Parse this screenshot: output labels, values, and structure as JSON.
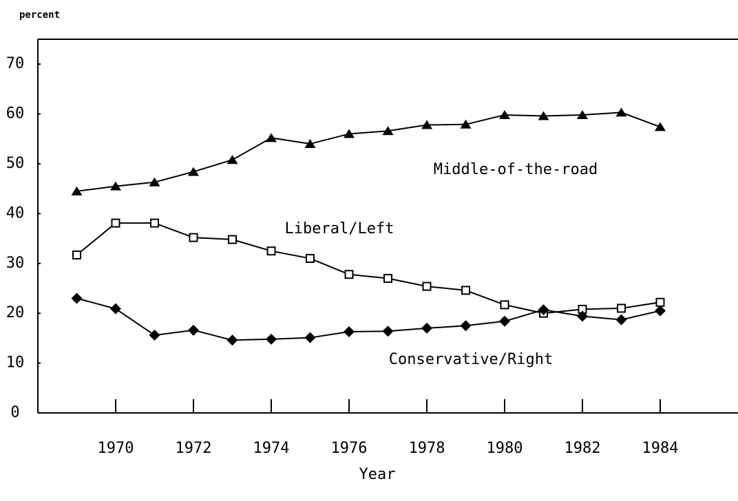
{
  "chart_data": {
    "type": "line",
    "y_label": "percent",
    "x_label": "Year",
    "x": [
      1969,
      1970,
      1971,
      1972,
      1973,
      1974,
      1975,
      1976,
      1977,
      1978,
      1979,
      1980,
      1981,
      1982,
      1983,
      1984
    ],
    "series": [
      {
        "name": "Middle-of-the-road",
        "color": "#000000",
        "marker": "triangle",
        "values": [
          44.5,
          45.5,
          46.3,
          48.4,
          50.8,
          55.2,
          54,
          56,
          56.6,
          57.8,
          57.9,
          59.8,
          59.6,
          59.8,
          60.3,
          57.4
        ]
      },
      {
        "name": "Liberal/Left",
        "color": "#000000",
        "marker": "square",
        "values": [
          31.7,
          38.1,
          38.1,
          35.2,
          34.8,
          32.5,
          31,
          27.8,
          27,
          25.4,
          24.6,
          21.7,
          20,
          20.8,
          21,
          22.2
        ]
      },
      {
        "name": "Conservative/Right",
        "color": "#000000",
        "marker": "diamond",
        "values": [
          23,
          20.9,
          15.6,
          16.6,
          14.6,
          14.8,
          15.1,
          16.3,
          16.4,
          17,
          17.5,
          18.4,
          20.7,
          19.4,
          18.7,
          20.5
        ]
      }
    ],
    "xlim": [
      1968,
      1986
    ],
    "xticks": [
      1970,
      1972,
      1974,
      1976,
      1978,
      1980,
      1982,
      1984
    ],
    "ylim": [
      0,
      75
    ],
    "yticks": [
      0,
      10,
      20,
      30,
      40,
      50,
      60,
      70
    ]
  }
}
